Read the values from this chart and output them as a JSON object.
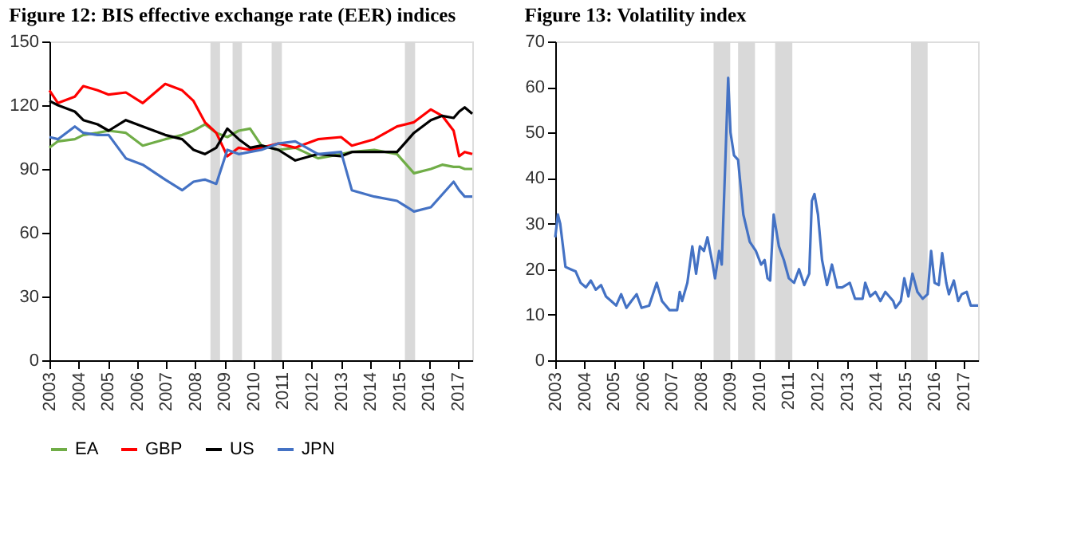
{
  "chart_data": [
    {
      "type": "line",
      "title": "Figure 12: BIS effective exchange rate (EER) indices",
      "x": [
        2003.0,
        2003.29,
        2003.87,
        2004.16,
        2004.65,
        2005.03,
        2005.62,
        2006.2,
        2006.97,
        2007.55,
        2007.94,
        2008.33,
        2008.72,
        2009.1,
        2009.49,
        2009.88,
        2010.27,
        2010.85,
        2011.43,
        2012.21,
        2013.0,
        2013.37,
        2014.14,
        2014.92,
        2015.5,
        2016.08,
        2016.47,
        2016.86,
        2017.05,
        2017.24,
        2017.5
      ],
      "series": [
        {
          "name": "EA",
          "color": "#70ad47",
          "values": [
            100,
            103,
            104,
            106,
            107,
            108,
            107,
            101,
            104,
            106,
            108,
            111,
            107,
            105,
            108,
            109,
            101,
            99,
            100,
            95,
            97,
            98,
            99,
            97,
            88,
            90,
            92,
            91,
            91,
            90,
            90
          ]
        },
        {
          "name": "GBP",
          "color": "#ff0000",
          "values": [
            127,
            121,
            124,
            129,
            127,
            125,
            126,
            121,
            130,
            127,
            122,
            112,
            107,
            96,
            100,
            99,
            100,
            102,
            100,
            104,
            105,
            101,
            104,
            110,
            112,
            118,
            115,
            108,
            96,
            98,
            97
          ]
        },
        {
          "name": "US",
          "color": "#000000",
          "values": [
            122,
            120,
            117,
            113,
            111,
            108,
            113,
            110,
            106,
            104,
            99,
            97,
            100,
            109,
            104,
            100,
            101,
            99,
            94,
            97,
            96,
            98,
            98,
            98,
            107,
            113,
            115,
            114,
            117,
            119,
            116
          ]
        },
        {
          "name": "JPN",
          "color": "#4472c4",
          "values": [
            105,
            104,
            110,
            107,
            106,
            106,
            95,
            92,
            85,
            80,
            84,
            85,
            83,
            99,
            97,
            98,
            99,
            102,
            103,
            97,
            98,
            80,
            77,
            75,
            70,
            72,
            78,
            84,
            80,
            77,
            77
          ]
        }
      ],
      "xlim": [
        2003,
        2017.5
      ],
      "xticks": [
        2003,
        2004,
        2005,
        2006,
        2007,
        2008,
        2009,
        2010,
        2011,
        2012,
        2013,
        2014,
        2015,
        2016,
        2017
      ],
      "ylim": [
        0,
        150
      ],
      "yticks": [
        0,
        30,
        60,
        90,
        120,
        150
      ],
      "bands": [
        {
          "axis": "x",
          "from": 2008.52,
          "to": 2008.85,
          "color": "#d9d9d9"
        },
        {
          "axis": "x",
          "from": 2009.28,
          "to": 2009.6,
          "color": "#d9d9d9"
        },
        {
          "axis": "x",
          "from": 2010.62,
          "to": 2010.97,
          "color": "#d9d9d9"
        },
        {
          "axis": "x",
          "from": 2015.19,
          "to": 2015.54,
          "color": "#d9d9d9"
        }
      ],
      "legend": "bottom",
      "grid": false
    },
    {
      "type": "line",
      "title": "Figure 13: Volatility index",
      "x": [
        2003.0,
        2003.09,
        2003.17,
        2003.35,
        2003.52,
        2003.7,
        2003.87,
        2004.05,
        2004.22,
        2004.39,
        2004.57,
        2004.74,
        2004.92,
        2005.09,
        2005.26,
        2005.44,
        2005.61,
        2005.79,
        2005.96,
        2006.22,
        2006.48,
        2006.66,
        2006.92,
        2007.18,
        2007.27,
        2007.35,
        2007.53,
        2007.7,
        2007.83,
        2007.96,
        2008.1,
        2008.22,
        2008.4,
        2008.48,
        2008.62,
        2008.71,
        2008.84,
        2008.93,
        2009.01,
        2009.13,
        2009.27,
        2009.45,
        2009.67,
        2009.88,
        2010.06,
        2010.18,
        2010.28,
        2010.37,
        2010.49,
        2010.67,
        2010.84,
        2011.01,
        2011.19,
        2011.36,
        2011.54,
        2011.71,
        2011.8,
        2011.89,
        2012.01,
        2012.15,
        2012.32,
        2012.49,
        2012.67,
        2012.84,
        2013.1,
        2013.28,
        2013.54,
        2013.63,
        2013.8,
        2013.98,
        2014.15,
        2014.32,
        2014.59,
        2014.67,
        2014.85,
        2014.97,
        2015.11,
        2015.25,
        2015.42,
        2015.6,
        2015.77,
        2015.89,
        2016.01,
        2016.15,
        2016.27,
        2016.41,
        2016.5,
        2016.67,
        2016.82,
        2016.94,
        2017.11,
        2017.25,
        2017.5
      ],
      "series": [
        {
          "color": "#4472c4",
          "values": [
            27,
            32,
            30,
            20.5,
            20,
            19.5,
            17,
            16,
            17.5,
            15.5,
            16.5,
            14,
            13,
            12,
            14.5,
            11.5,
            13,
            14.5,
            11.5,
            12,
            17,
            13,
            11,
            11,
            15,
            13,
            17,
            25,
            19,
            25,
            24,
            27,
            21,
            18,
            24,
            21,
            45,
            62,
            50,
            45,
            44,
            32,
            26,
            24,
            21,
            22,
            18,
            17.5,
            32,
            25,
            22,
            18,
            17,
            20,
            16.5,
            19,
            35,
            36.5,
            32,
            22,
            16.5,
            21,
            16,
            16,
            17,
            13.5,
            13.5,
            17,
            14,
            15,
            13,
            15,
            13,
            11.5,
            13,
            18,
            14,
            19,
            15,
            13.5,
            14.5,
            24,
            17,
            16.5,
            23.5,
            17,
            14.5,
            17.5,
            13,
            14.5,
            15,
            12,
            12
          ]
        }
      ],
      "xlim": [
        2003,
        2017.5
      ],
      "xticks": [
        2003,
        2004,
        2005,
        2006,
        2007,
        2008,
        2009,
        2010,
        2011,
        2012,
        2013,
        2014,
        2015,
        2016,
        2017
      ],
      "ylim": [
        0,
        70
      ],
      "yticks": [
        0,
        10,
        20,
        30,
        40,
        50,
        60,
        70
      ],
      "bands": [
        {
          "axis": "x",
          "from": 2008.43,
          "to": 2009.0,
          "color": "#d9d9d9"
        },
        {
          "axis": "x",
          "from": 2009.27,
          "to": 2009.85,
          "color": "#d9d9d9"
        },
        {
          "axis": "x",
          "from": 2010.54,
          "to": 2011.13,
          "color": "#d9d9d9"
        },
        {
          "axis": "x",
          "from": 2015.2,
          "to": 2015.77,
          "color": "#d9d9d9"
        }
      ],
      "legend": false,
      "grid": false
    }
  ]
}
